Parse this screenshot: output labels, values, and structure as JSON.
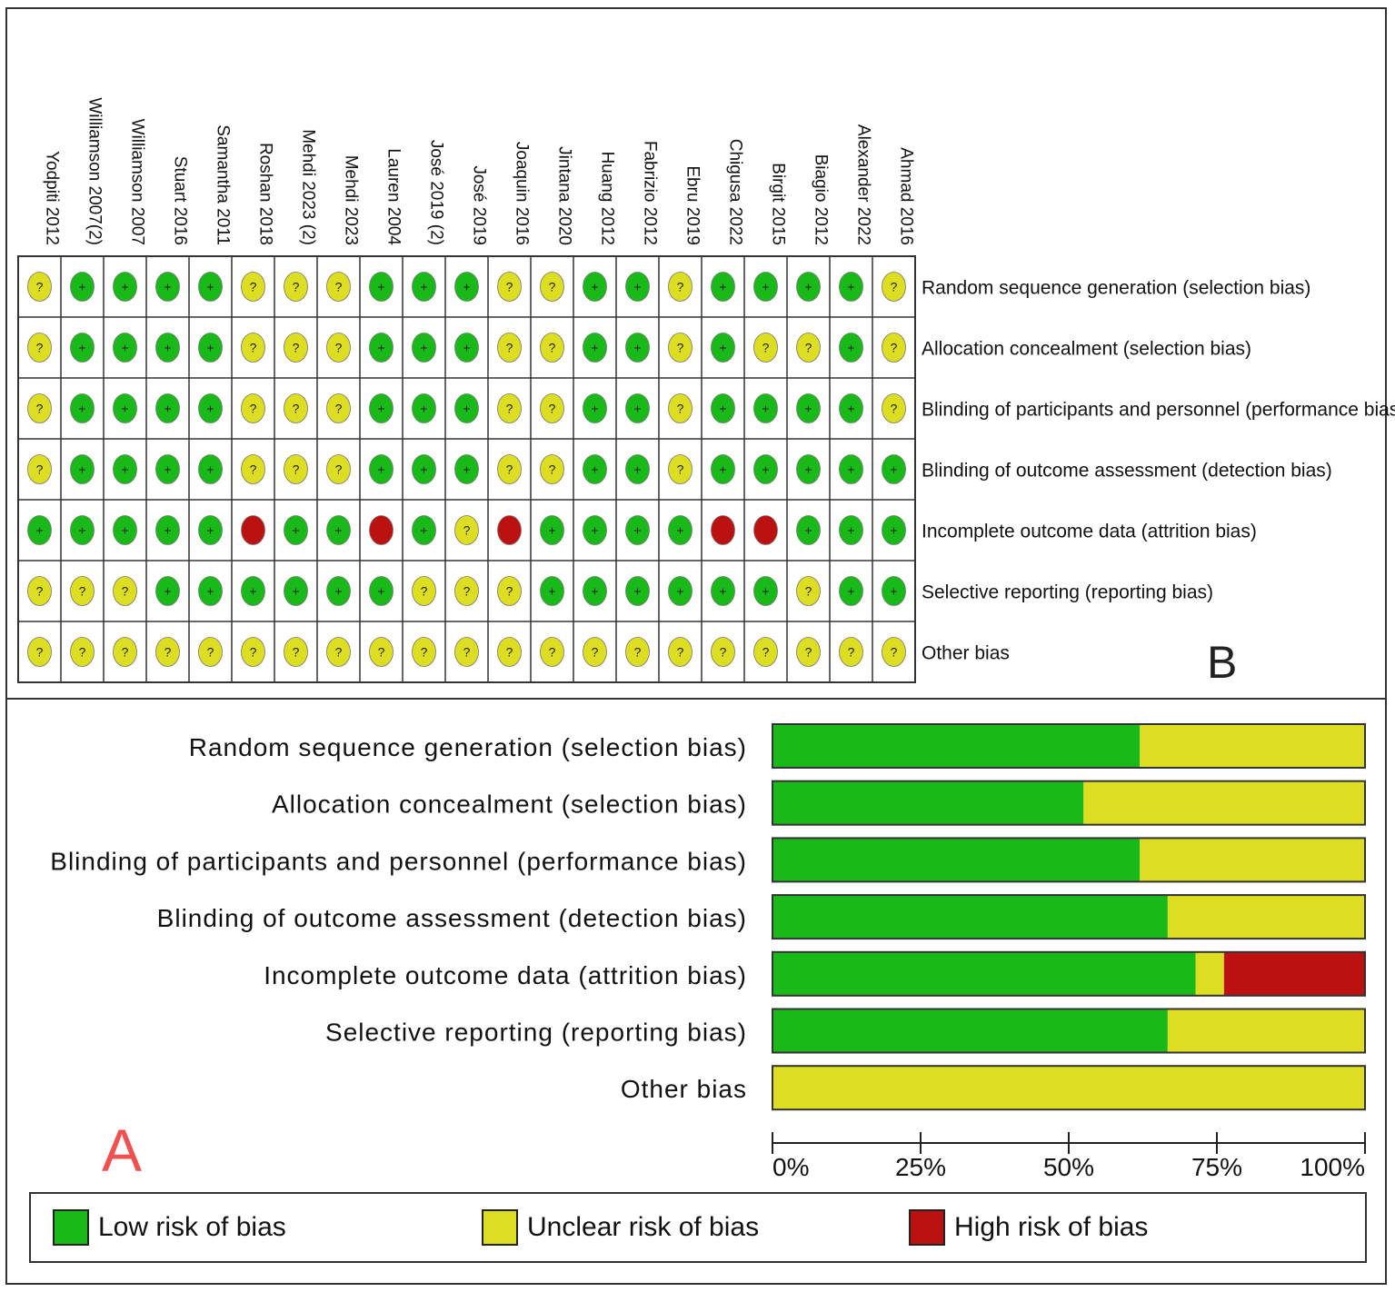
{
  "colors": {
    "low": "#19b919",
    "unclear": "#dddd22",
    "high": "#bb1111"
  },
  "panels": {
    "summary_letter": "B",
    "graph_letter": "A"
  },
  "legend": {
    "low": "Low risk of bias",
    "unclear": "Unclear risk of bias",
    "high": "High risk of bias"
  },
  "chart_data": [
    {
      "type": "table",
      "studies": [
        "Yodpiti 2012",
        "Williamson 2007(2)",
        "Williamson 2007",
        "Stuart 2016",
        "Samantha 2011",
        "Roshan 2018",
        "Mehdi 2023 (2)",
        "Mehdi 2023",
        "Lauren 2004",
        "José 2019 (2)",
        "José 2019",
        "Joaquin 2016",
        "Jintana 2020",
        "Huang 2012",
        "Fabrizio 2012",
        "Ebru 2019",
        "Chigusa 2022",
        "Birgit 2015",
        "Biagio 2012",
        "Alexander 2022",
        "Ahmad 2016"
      ],
      "domains": [
        "Random sequence generation (selection bias)",
        "Allocation concealment (selection bias)",
        "Blinding of participants and personnel (performance bias)",
        "Blinding of outcome assessment (detection bias)",
        "Incomplete outcome data (attrition bias)",
        "Selective reporting (reporting bias)",
        "Other bias"
      ],
      "symbols": {
        "low": "+",
        "unclear": "?",
        "high": ""
      },
      "judgements": [
        [
          "unclear",
          "low",
          "low",
          "low",
          "low",
          "unclear",
          "unclear",
          "unclear",
          "low",
          "low",
          "low",
          "unclear",
          "unclear",
          "low",
          "low",
          "unclear",
          "low",
          "low",
          "low",
          "low",
          "unclear"
        ],
        [
          "unclear",
          "low",
          "low",
          "low",
          "low",
          "unclear",
          "unclear",
          "unclear",
          "low",
          "low",
          "low",
          "unclear",
          "unclear",
          "low",
          "low",
          "unclear",
          "low",
          "unclear",
          "unclear",
          "low",
          "unclear"
        ],
        [
          "unclear",
          "low",
          "low",
          "low",
          "low",
          "unclear",
          "unclear",
          "unclear",
          "low",
          "low",
          "low",
          "unclear",
          "unclear",
          "low",
          "low",
          "unclear",
          "low",
          "low",
          "low",
          "low",
          "unclear"
        ],
        [
          "unclear",
          "low",
          "low",
          "low",
          "low",
          "unclear",
          "unclear",
          "unclear",
          "low",
          "low",
          "low",
          "unclear",
          "unclear",
          "low",
          "low",
          "unclear",
          "low",
          "low",
          "low",
          "low",
          "low"
        ],
        [
          "low",
          "low",
          "low",
          "low",
          "low",
          "high",
          "low",
          "low",
          "high",
          "low",
          "unclear",
          "high",
          "low",
          "low",
          "low",
          "low",
          "high",
          "high",
          "low",
          "low",
          "low"
        ],
        [
          "unclear",
          "unclear",
          "unclear",
          "low",
          "low",
          "low",
          "low",
          "low",
          "low",
          "unclear",
          "unclear",
          "unclear",
          "low",
          "low",
          "low",
          "low",
          "low",
          "low",
          "unclear",
          "low",
          "low"
        ],
        [
          "unclear",
          "unclear",
          "unclear",
          "unclear",
          "unclear",
          "unclear",
          "unclear",
          "unclear",
          "unclear",
          "unclear",
          "unclear",
          "unclear",
          "unclear",
          "unclear",
          "unclear",
          "unclear",
          "unclear",
          "unclear",
          "unclear",
          "unclear",
          "unclear"
        ]
      ]
    },
    {
      "type": "bar",
      "stacked": true,
      "orientation": "horizontal",
      "categories": [
        "Random sequence generation (selection bias)",
        "Allocation concealment (selection bias)",
        "Blinding of participants and personnel (performance bias)",
        "Blinding of outcome assessment (detection bias)",
        "Incomplete outcome data (attrition bias)",
        "Selective reporting (reporting bias)",
        "Other bias"
      ],
      "series": [
        {
          "name": "Low risk of bias",
          "values": [
            62,
            52.5,
            62,
            66.7,
            71.4,
            66.7,
            0
          ]
        },
        {
          "name": "Unclear risk of bias",
          "values": [
            38,
            47.5,
            38,
            33.3,
            4.8,
            33.3,
            100
          ]
        },
        {
          "name": "High risk of bias",
          "values": [
            0,
            0,
            0,
            0,
            23.8,
            0,
            0
          ]
        }
      ],
      "xlim": [
        0,
        100
      ],
      "xticks": [
        0,
        25,
        50,
        75,
        100
      ],
      "xtick_labels": [
        "0%",
        "25%",
        "50%",
        "75%",
        "100%"
      ]
    }
  ]
}
